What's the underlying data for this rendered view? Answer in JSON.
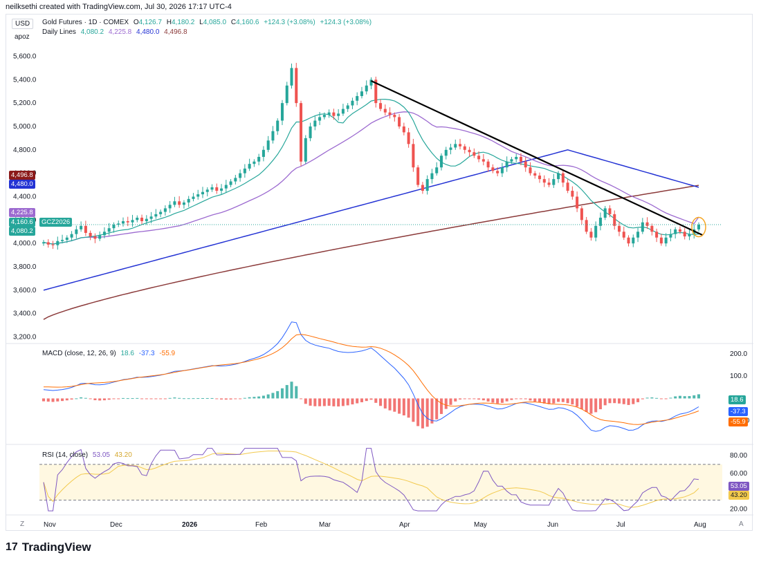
{
  "header": {
    "credit": "neilksethi created with TradingView.com, Jul 30, 2026 17:17 UTC-4"
  },
  "axis_controls": {
    "currency": "USD",
    "unit": "apoz",
    "zoom_left": "Z",
    "auto_right": "A"
  },
  "logo": {
    "text": "TradingView",
    "mark": "17"
  },
  "legend_main": {
    "symbol": "Gold Futures · 1D · COMEX",
    "o_label": "O",
    "o_val": "4,126.7",
    "h_label": "H",
    "h_val": "4,180.2",
    "l_label": "L",
    "l_val": "4,085.0",
    "c_label": "C",
    "c_val": "4,160.6",
    "change": "+124.3 (+3.08%)",
    "change2": "+124.3 (+3.08%)"
  },
  "legend_lines": {
    "label": "Daily Lines",
    "v1": "4,080.2",
    "v2": "4,225.8",
    "v3": "4,480.0",
    "v4": "4,496.8"
  },
  "legend_macd": {
    "label": "MACD (close, 12, 26, 9)",
    "v1": "18.6",
    "v2": "-37.3",
    "v3": "-55.9"
  },
  "legend_rsi": {
    "label": "RSI (14, close)",
    "v1": "53.05",
    "v2": "43.20"
  },
  "price_tags": {
    "ma200": "4,496.8",
    "ma100": "4,480.0",
    "ma50": "4,225.8",
    "last": "4,160.6",
    "symbol": "GCZ2026",
    "ma20": "4,080.2",
    "macd_hist": "18.6",
    "macd_line": "-37.3",
    "macd_signal": "-55.9",
    "rsi": "53.05",
    "rsi_ma": "43.20"
  },
  "colors": {
    "up": "#26a69a",
    "down": "#ef5350",
    "ma20": "#26a69a",
    "ma50": "#9c6ad0",
    "ma100": "#2433d4",
    "ma200": "#8b3a3a",
    "trendline": "#000000",
    "circle": "#f5a623",
    "macd": "#2962ff",
    "signal": "#ff6d00",
    "rsi": "#7e57c2",
    "rsi_ma": "#f2c94c"
  },
  "chart_data": {
    "type": "candlestick",
    "title": "Gold Futures · 1D · COMEX",
    "x_labels": [
      "Nov",
      "Dec",
      "2026",
      "Feb",
      "Mar",
      "Apr",
      "May",
      "Jun",
      "Jul",
      "Aug"
    ],
    "price_axis": {
      "ticks": [
        "5,600.0",
        "5,400.0",
        "5,200.0",
        "5,000.0",
        "4,800.0",
        "4,600.0",
        "4,400.0",
        "4,200.0",
        "4,000.0",
        "3,800.0",
        "3,600.0",
        "3,400.0",
        "3,200.0"
      ],
      "range": [
        3150,
        5780
      ]
    },
    "price_close_approx": [
      4010,
      3990,
      3985,
      4020,
      4030,
      4050,
      4080,
      4120,
      4150,
      4090,
      4060,
      4040,
      4070,
      4100,
      4130,
      4160,
      4170,
      4190,
      4180,
      4200,
      4220,
      4190,
      4210,
      4230,
      4250,
      4270,
      4300,
      4330,
      4360,
      4330,
      4350,
      4380,
      4400,
      4420,
      4440,
      4460,
      4480,
      4450,
      4470,
      4500,
      4530,
      4560,
      4600,
      4640,
      4680,
      4700,
      4740,
      4800,
      4880,
      4960,
      5050,
      5200,
      5350,
      5500,
      5200,
      4700,
      4900,
      5000,
      5050,
      5080,
      5100,
      5120,
      5090,
      5110,
      5150,
      5180,
      5220,
      5260,
      5300,
      5350,
      5400,
      5200,
      5150,
      5120,
      5100,
      5080,
      5000,
      4950,
      4850,
      4650,
      4500,
      4450,
      4550,
      4600,
      4650,
      4750,
      4800,
      4820,
      4850,
      4830,
      4800,
      4780,
      4750,
      4720,
      4700,
      4650,
      4620,
      4600,
      4650,
      4700,
      4720,
      4740,
      4700,
      4650,
      4600,
      4580,
      4550,
      4520,
      4500,
      4550,
      4600,
      4520,
      4450,
      4400,
      4300,
      4200,
      4100,
      4050,
      4150,
      4220,
      4300,
      4250,
      4150,
      4100,
      4050,
      4000,
      4050,
      4100,
      4180,
      4150,
      4100,
      4050,
      4000,
      4050,
      4080,
      4120,
      4100,
      4060,
      4080,
      4120,
      4160
    ],
    "moving_averages": [
      {
        "name": "20",
        "last": 4080.2
      },
      {
        "name": "50",
        "last": 4225.8
      },
      {
        "name": "100",
        "last": 4480.0
      },
      {
        "name": "200",
        "last": 4496.8
      }
    ],
    "macd": {
      "params": "close, 12, 26, 9",
      "ticks": [
        "200.0",
        "100.0",
        "-100.0"
      ],
      "histogram_last": 18.6,
      "macd_last": -37.3,
      "signal_last": -55.9,
      "range": [
        -200,
        240
      ]
    },
    "rsi": {
      "params": "14, close",
      "ticks": [
        "80.00",
        "60.00",
        "20.00"
      ],
      "bands": [
        70,
        30
      ],
      "last": 53.05,
      "ma_last": 43.2,
      "range": [
        15,
        90
      ]
    }
  }
}
